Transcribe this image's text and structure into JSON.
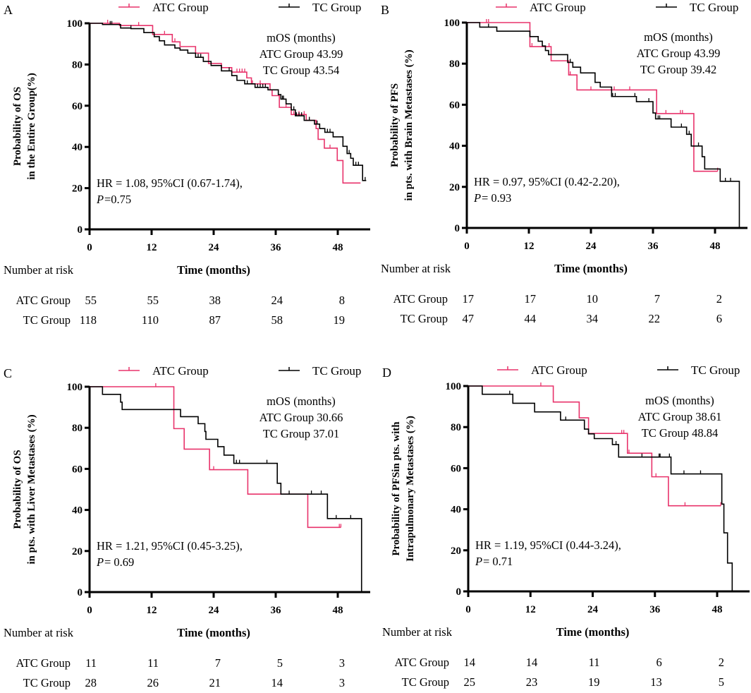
{
  "colors": {
    "atc": "#e8336b",
    "tc": "#000000"
  },
  "chart_data": [
    {
      "type": "line",
      "panel_label": "A",
      "ylabel": [
        "Probability of OS",
        "in the Entire Group(%)"
      ],
      "xlabel": "Time (months)",
      "xticks": [
        "0",
        "12",
        "24",
        "36",
        "48"
      ],
      "yticks": [
        "0",
        "20",
        "40",
        "60",
        "80",
        "100"
      ],
      "xlim": [
        0,
        54
      ],
      "ylim": [
        0,
        100
      ],
      "legend": {
        "atc": "ATC Group",
        "tc": "TC Group",
        "position": "top"
      },
      "annotation": {
        "title": "mOS  (months)",
        "atc": "ATC Group  43.99",
        "tc": "TC  Group  43.54"
      },
      "stats": {
        "hr": "HR = 1.08, 95%CI (0.67-1.74),",
        "p_label": "P",
        "p_value": " =0.75"
      },
      "risk": {
        "title": "Number at risk",
        "atc_label": "ATC Group",
        "tc_label": "TC Group",
        "atc": [
          "55",
          "55",
          "38",
          "24",
          "8"
        ],
        "tc": [
          "118",
          "110",
          "87",
          "58",
          "19"
        ]
      },
      "series": [
        {
          "name": "ATC Group",
          "points": [
            [
              0,
              100
            ],
            [
              5.8,
              98.9
            ],
            [
              12.2,
              94.6
            ],
            [
              16,
              91
            ],
            [
              17.5,
              88.7
            ],
            [
              20.5,
              85.5
            ],
            [
              23,
              80.5
            ],
            [
              25.5,
              78.5
            ],
            [
              27.5,
              76.3
            ],
            [
              30.4,
              73.5
            ],
            [
              31.3,
              70.6
            ],
            [
              34.9,
              67.7
            ],
            [
              35.3,
              64.9
            ],
            [
              36.7,
              59.2
            ],
            [
              39,
              55.7
            ],
            [
              41.9,
              52.9
            ],
            [
              43.8,
              48.9
            ],
            [
              44.2,
              43.7
            ],
            [
              45.4,
              39.4
            ],
            [
              47.9,
              33.4
            ],
            [
              49,
              22.5
            ],
            [
              52.4,
              22.5
            ]
          ],
          "censored": [
            3.5,
            9.5,
            14.5,
            16.5,
            28.5,
            29,
            29.5,
            30,
            31.5,
            33,
            38,
            39.5,
            40.5,
            41.5,
            46.5
          ]
        },
        {
          "name": "TC Group",
          "points": [
            [
              0,
              100
            ],
            [
              2.5,
              99.4
            ],
            [
              6,
              97.7
            ],
            [
              8,
              97.4
            ],
            [
              10.5,
              95.5
            ],
            [
              12.5,
              93.5
            ],
            [
              13.5,
              91.5
            ],
            [
              14.5,
              89.5
            ],
            [
              16.5,
              88
            ],
            [
              17.5,
              87
            ],
            [
              19,
              85.5
            ],
            [
              20.5,
              83.5
            ],
            [
              22,
              81.5
            ],
            [
              23.5,
              79.5
            ],
            [
              25.5,
              76.9
            ],
            [
              27.5,
              74.6
            ],
            [
              28.5,
              72.3
            ],
            [
              30,
              70.6
            ],
            [
              32,
              68.9
            ],
            [
              34.5,
              67.7
            ],
            [
              36.5,
              65.4
            ],
            [
              37,
              63.2
            ],
            [
              38,
              60.9
            ],
            [
              39,
              58
            ],
            [
              39.8,
              55.1
            ],
            [
              41.5,
              52.9
            ],
            [
              43.5,
              51.1
            ],
            [
              44.5,
              48.9
            ],
            [
              45.5,
              47.1
            ],
            [
              47.1,
              44.9
            ],
            [
              49,
              40.3
            ],
            [
              49.8,
              36.8
            ],
            [
              50.5,
              34.5
            ],
            [
              51,
              31.1
            ],
            [
              52.8,
              23.7
            ],
            [
              53.5,
              23.7
            ]
          ],
          "censored": [
            4,
            4.3,
            8,
            21,
            21.5,
            27,
            30.5,
            32.5,
            33,
            33.5,
            34,
            37.3,
            37.5,
            39.5,
            40,
            40.5,
            41,
            42.5,
            44,
            46,
            46.5,
            50.2,
            51.5,
            52,
            53.3
          ]
        }
      ]
    },
    {
      "type": "line",
      "panel_label": "B",
      "ylabel": [
        "Probability of PFS",
        "in pts. with Brain  Metastases (%)"
      ],
      "xlabel": "Time (months)",
      "xticks": [
        "0",
        "12",
        "24",
        "36",
        "48"
      ],
      "yticks": [
        "0",
        "20",
        "40",
        "60",
        "80",
        "100"
      ],
      "xlim": [
        0,
        54
      ],
      "ylim": [
        0,
        100
      ],
      "legend": {
        "atc": "ATC Group",
        "tc": "TC Group",
        "position": "top"
      },
      "annotation": {
        "title": "mOS  (months)",
        "atc": "ATC Group  43.99",
        "tc": "TC  Group  39.42"
      },
      "stats": {
        "hr": "HR = 0.97, 95%CI (0.42-2.20),",
        "p_label": "P",
        "p_value": " = 0.93"
      },
      "risk": {
        "title": "Number at risk",
        "atc_label": "ATC Group",
        "tc_label": "TC Group",
        "atc": [
          "17",
          "17",
          "10",
          "7",
          "2"
        ],
        "tc": [
          "47",
          "44",
          "34",
          "22",
          "6"
        ]
      },
      "series": [
        {
          "name": "ATC Group",
          "points": [
            [
              0,
              100
            ],
            [
              12.2,
              88.3
            ],
            [
              16.3,
              81.4
            ],
            [
              19.7,
              74.5
            ],
            [
              21.3,
              67.2
            ],
            [
              36.7,
              55.7
            ],
            [
              43.9,
              27.6
            ],
            [
              48.5,
              27.6
            ]
          ],
          "censored": [
            3.8,
            4.2,
            12.6,
            15.9,
            20,
            24,
            28.5,
            31.5,
            38.5,
            41.3,
            41.7,
            48.5
          ]
        },
        {
          "name": "TC Group",
          "points": [
            [
              0,
              100
            ],
            [
              2.5,
              97.8
            ],
            [
              5.8,
              95.8
            ],
            [
              12.2,
              93.2
            ],
            [
              13.8,
              90.9
            ],
            [
              14.6,
              88.6
            ],
            [
              15.2,
              86.4
            ],
            [
              15.8,
              84.4
            ],
            [
              19.5,
              80.6
            ],
            [
              20.5,
              78.3
            ],
            [
              22,
              75.5
            ],
            [
              24.8,
              70.9
            ],
            [
              25.8,
              68.6
            ],
            [
              28,
              64
            ],
            [
              32.8,
              61.5
            ],
            [
              36,
              56
            ],
            [
              36.5,
              53.1
            ],
            [
              39.5,
              49.1
            ],
            [
              42.5,
              45.6
            ],
            [
              43.4,
              39.9
            ],
            [
              45.5,
              34.7
            ],
            [
              46,
              28.7
            ],
            [
              49,
              22.7
            ],
            [
              52.7,
              22.7
            ],
            [
              52.7,
              0
            ]
          ],
          "censored": [
            4.2,
            20,
            28.2,
            28.7,
            32.5,
            35.2,
            37,
            37.3,
            41.5,
            43,
            44.8,
            50,
            51
          ]
        }
      ]
    },
    {
      "type": "line",
      "panel_label": "C",
      "ylabel": [
        "Probability of OS",
        "in pts. with Liver Metastases (%)"
      ],
      "xlabel": "Time (months)",
      "xticks": [
        "0",
        "12",
        "24",
        "36",
        "48"
      ],
      "yticks": [
        "0",
        "20",
        "40",
        "60",
        "80",
        "100"
      ],
      "xlim": [
        0,
        54
      ],
      "ylim": [
        0,
        100
      ],
      "legend": {
        "atc": "ATC Group",
        "tc": "TC Group",
        "position": "top"
      },
      "annotation": {
        "title": "mOS  (months)",
        "atc": "ATC Group  30.66",
        "tc": "TC  Group  37.01"
      },
      "stats": {
        "hr": "HR = 1.21, 95%CI (0.45-3.25),",
        "p_label": "P",
        "p_value": " = 0.69"
      },
      "risk": {
        "title": "Number at risk",
        "atc_label": "ATC Group",
        "tc_label": "TC Group",
        "atc": [
          "11",
          "11",
          "7",
          "5",
          "3"
        ],
        "tc": [
          "28",
          "26",
          "21",
          "14",
          "3"
        ]
      },
      "series": [
        {
          "name": "ATC Group",
          "points": [
            [
              0,
              100
            ],
            [
              16.3,
              79.6
            ],
            [
              18.3,
              69.6
            ],
            [
              23.2,
              59.6
            ],
            [
              30.6,
              47.7
            ],
            [
              42.2,
              31.5
            ],
            [
              48.6,
              31.5
            ]
          ],
          "censored": [
            12.8,
            24,
            48.3,
            48.6
          ]
        },
        {
          "name": "TC Group",
          "points": [
            [
              0,
              100
            ],
            [
              2.5,
              96.3
            ],
            [
              6,
              92.5
            ],
            [
              6.3,
              88.9
            ],
            [
              17.6,
              85.4
            ],
            [
              21,
              82
            ],
            [
              22.3,
              78.2
            ],
            [
              22.5,
              74.4
            ],
            [
              24.8,
              70.8
            ],
            [
              26,
              66.7
            ],
            [
              27.9,
              62.7
            ],
            [
              36.3,
              53
            ],
            [
              37,
              47.7
            ],
            [
              46,
              35.8
            ],
            [
              52.6,
              35.8
            ],
            [
              52.6,
              0
            ]
          ],
          "censored": [
            28.4,
            29,
            34.3,
            38.6,
            42.9,
            44.8,
            47.7,
            50.5
          ]
        }
      ]
    },
    {
      "type": "line",
      "panel_label": "D",
      "ylabel": [
        "Probability of PFSin pts. with",
        "Intrapulmonary Metastases (%)"
      ],
      "xlabel": "Time (months)",
      "xticks": [
        "0",
        "12",
        "24",
        "36",
        "48"
      ],
      "yticks": [
        "0",
        "20",
        "40",
        "60",
        "80",
        "100"
      ],
      "xlim": [
        0,
        54
      ],
      "ylim": [
        0,
        100
      ],
      "legend": {
        "atc": "ATC Group",
        "tc": "TC Group",
        "position": "top"
      },
      "annotation": {
        "title": "mOS  (months)",
        "atc": "ATC Group  38.61",
        "tc": "TC  Group  48.84"
      },
      "stats": {
        "hr": "HR = 1.19, 95%CI (0.44-3.24),",
        "p_label": "P",
        "p_value": " = 0.71"
      },
      "risk": {
        "title": "Number at risk",
        "atc_label": "ATC Group",
        "tc_label": "TC Group",
        "atc": [
          "14",
          "14",
          "11",
          "6",
          "2"
        ],
        "tc": [
          "25",
          "23",
          "19",
          "13",
          "5"
        ]
      },
      "series": [
        {
          "name": "ATC Group",
          "points": [
            [
              0,
              100
            ],
            [
              16.4,
              92.2
            ],
            [
              21.4,
              84.5
            ],
            [
              23.2,
              76.9
            ],
            [
              30.7,
              67.3
            ],
            [
              35.4,
              55.8
            ],
            [
              38.6,
              41.7
            ],
            [
              48.7,
              41.7
            ]
          ],
          "censored": [
            14,
            29.6,
            30,
            31,
            36.2,
            41.8,
            48.7
          ]
        },
        {
          "name": "TC Group",
          "points": [
            [
              0,
              100
            ],
            [
              2.7,
              96
            ],
            [
              8.6,
              91.6
            ],
            [
              12.8,
              87.4
            ],
            [
              17.8,
              83.4
            ],
            [
              22.4,
              79
            ],
            [
              23.2,
              76.7
            ],
            [
              24.3,
              74.4
            ],
            [
              27.8,
              71.5
            ],
            [
              29,
              65.4
            ],
            [
              39.1,
              57.2
            ],
            [
              48.9,
              42.5
            ],
            [
              49.3,
              28.5
            ],
            [
              50,
              13.8
            ],
            [
              50.9,
              13.8
            ],
            [
              50.9,
              0
            ]
          ],
          "censored": [
            8,
            18.8,
            28.5,
            33.5,
            36.8,
            37,
            38.8,
            41.6,
            44.8
          ]
        }
      ]
    }
  ]
}
